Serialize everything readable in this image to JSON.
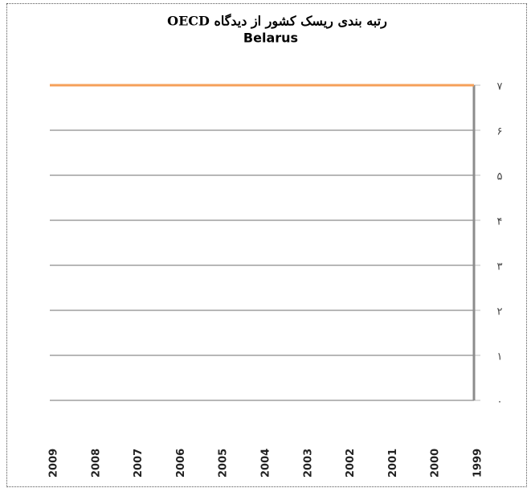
{
  "chart_data": {
    "type": "line",
    "title": "رتبه بندی ریسک کشور از دیدگاه OECD",
    "subtitle": "Belarus",
    "categories": [
      "2009",
      "2008",
      "2007",
      "2006",
      "2005",
      "2004",
      "2003",
      "2002",
      "2001",
      "2000",
      "1999"
    ],
    "series": [
      {
        "name": "Belarus",
        "color": "#f5a05a",
        "values": [
          7,
          7,
          7,
          7,
          7,
          7,
          7,
          7,
          7,
          7,
          7
        ]
      }
    ],
    "ylim": [
      0,
      7
    ],
    "yticks": [
      {
        "value": 0,
        "label": "۰"
      },
      {
        "value": 1,
        "label": "۱"
      },
      {
        "value": 2,
        "label": "۲"
      },
      {
        "value": 3,
        "label": "۳"
      },
      {
        "value": 4,
        "label": "۴"
      },
      {
        "value": 5,
        "label": "۵"
      },
      {
        "value": 6,
        "label": "۶"
      },
      {
        "value": 7,
        "label": "۷"
      }
    ],
    "grid": true,
    "y_axis_side": "right"
  }
}
